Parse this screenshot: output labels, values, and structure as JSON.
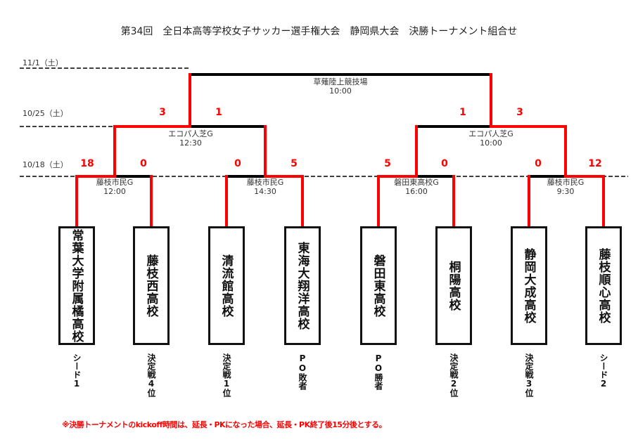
{
  "title": "第34回　全日本高等学校女子サッカー選手権大会　静岡県大会　決勝トーナメント組合せ",
  "colors": {
    "winner_line": "#ff0000",
    "line": "#000000",
    "score": "#ff0000"
  },
  "dates": {
    "final": "11/1（土）",
    "semifinal": "10/25（土）",
    "quarterfinal": "10/18（土）"
  },
  "final": {
    "venue": "草薙陸上競技場",
    "time": "10:00"
  },
  "semifinals": [
    {
      "venue": "エコパ人芝G",
      "time": "12:30",
      "score_left": "3",
      "score_right": "1"
    },
    {
      "venue": "エコパ人芝G",
      "time": "10:00",
      "score_left": "1",
      "score_right": "3"
    }
  ],
  "quarterfinals": [
    {
      "venue": "藤枝市民G",
      "time": "12:00",
      "score_left": "18",
      "score_right": "0"
    },
    {
      "venue": "藤枝市民G",
      "time": "14:30",
      "score_left": "0",
      "score_right": "5"
    },
    {
      "venue": "磐田東高校G",
      "time": "16:00",
      "score_left": "5",
      "score_right": "0"
    },
    {
      "venue": "藤枝市民G",
      "time": "9:30",
      "score_left": "0",
      "score_right": "12"
    }
  ],
  "teams": [
    {
      "name": "常葉大学附属橘高校",
      "note": "シード1"
    },
    {
      "name": "藤枝西高校",
      "note": "決定戦4位"
    },
    {
      "name": "清流館高校",
      "note": "決定戦1位"
    },
    {
      "name": "東海大翔洋高校",
      "note": "PO敗者"
    },
    {
      "name": "磐田東高校",
      "note": "PO勝者"
    },
    {
      "name": "桐陽高校",
      "note": "決定戦2位"
    },
    {
      "name": "静岡大成高校",
      "note": "決定戦3位"
    },
    {
      "name": "藤枝順心高校",
      "note": "シード2"
    }
  ],
  "footnote": "※決勝トーナメントのkickoff時間は、延長・PKになった場合、延長・PK終了後15分後とする。"
}
